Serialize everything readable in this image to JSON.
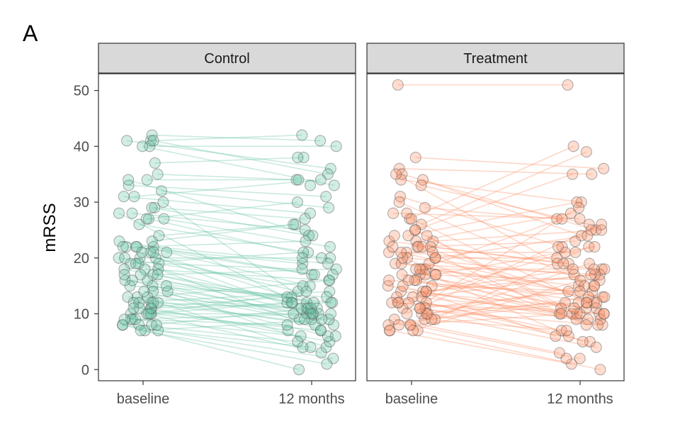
{
  "figure": {
    "tag": "A"
  },
  "colors": {
    "control": "#66c2a5",
    "treatment": "#fc8d62",
    "point_edge": "#555555",
    "strip_bg": "#d9d9d9",
    "frame": "#333333"
  },
  "chart_data": {
    "type": "line",
    "subtype": "paired-slope-scatter",
    "ylabel": "mRSS",
    "xlabel": "",
    "categories": [
      "baseline",
      "12 months"
    ],
    "ylim": [
      -2,
      53
    ],
    "yticks": [
      0,
      10,
      20,
      30,
      40,
      50
    ],
    "grid": false,
    "facets": [
      {
        "name": "Control",
        "color_key": "control",
        "pairs": [
          [
            41,
            42
          ],
          [
            40,
            40
          ],
          [
            42,
            41
          ],
          [
            41,
            36
          ],
          [
            41,
            35
          ],
          [
            37,
            38
          ],
          [
            35,
            34
          ],
          [
            34,
            34
          ],
          [
            33,
            31
          ],
          [
            32,
            29
          ],
          [
            31,
            28
          ],
          [
            29,
            27
          ],
          [
            28,
            25
          ],
          [
            27,
            22
          ],
          [
            26,
            21
          ],
          [
            24,
            26
          ],
          [
            22,
            19
          ],
          [
            22,
            17
          ],
          [
            21,
            15
          ],
          [
            20,
            14
          ],
          [
            20,
            20
          ],
          [
            19,
            18
          ],
          [
            18,
            16
          ],
          [
            17,
            12
          ],
          [
            16,
            13
          ],
          [
            15,
            10
          ],
          [
            14,
            9
          ],
          [
            13,
            11
          ],
          [
            12,
            8
          ],
          [
            11,
            7
          ],
          [
            10,
            10
          ],
          [
            10,
            12
          ],
          [
            9,
            6
          ],
          [
            8,
            5
          ],
          [
            7,
            4
          ],
          [
            7,
            9
          ],
          [
            27,
            20
          ],
          [
            23,
            17
          ],
          [
            17,
            10
          ],
          [
            12,
            11
          ],
          [
            40,
            33
          ],
          [
            34,
            24
          ],
          [
            30,
            11
          ],
          [
            28,
            10
          ],
          [
            21,
            12
          ],
          [
            18,
            7
          ],
          [
            16,
            4
          ],
          [
            14,
            9
          ],
          [
            13,
            8
          ],
          [
            11,
            5
          ],
          [
            10,
            3
          ],
          [
            8,
            2
          ],
          [
            8,
            0
          ],
          [
            7,
            1
          ],
          [
            12,
            14
          ],
          [
            15,
            13
          ],
          [
            19,
            11
          ],
          [
            20,
            15
          ],
          [
            22,
            19
          ],
          [
            17,
            18
          ],
          [
            13,
            16
          ],
          [
            11,
            13
          ],
          [
            9,
            10
          ],
          [
            10,
            7
          ],
          [
            8,
            11
          ],
          [
            11,
            12
          ],
          [
            23,
            26
          ],
          [
            27,
            30
          ],
          [
            29,
            24
          ],
          [
            31,
            34
          ],
          [
            22,
            23
          ],
          [
            19,
            21
          ],
          [
            18,
            12
          ],
          [
            15,
            9
          ],
          [
            14,
            6
          ],
          [
            12,
            4
          ],
          [
            21,
            10
          ],
          [
            16,
            12
          ],
          [
            9,
            8
          ],
          [
            10,
            14
          ]
        ],
        "baseline_only": [
          22,
          20,
          17,
          9,
          8,
          21,
          12,
          19
        ],
        "followup_only": [
          38,
          33,
          17,
          20,
          12,
          10,
          9,
          6
        ]
      },
      {
        "name": "Treatment",
        "color_key": "treatment",
        "pairs": [
          [
            51,
            51
          ],
          [
            38,
            36
          ],
          [
            36,
            35
          ],
          [
            35,
            25
          ],
          [
            34,
            30
          ],
          [
            34,
            24
          ],
          [
            33,
            26
          ],
          [
            31,
            22
          ],
          [
            29,
            27
          ],
          [
            28,
            27
          ],
          [
            27,
            40
          ],
          [
            26,
            39
          ],
          [
            25,
            35
          ],
          [
            24,
            30
          ],
          [
            23,
            28
          ],
          [
            23,
            25
          ],
          [
            22,
            23
          ],
          [
            22,
            19
          ],
          [
            21,
            21
          ],
          [
            21,
            18
          ],
          [
            20,
            20
          ],
          [
            20,
            17
          ],
          [
            19,
            17
          ],
          [
            19,
            13
          ],
          [
            18,
            18
          ],
          [
            18,
            15
          ],
          [
            17,
            16
          ],
          [
            17,
            12
          ],
          [
            16,
            11
          ],
          [
            16,
            10
          ],
          [
            15,
            14
          ],
          [
            15,
            9
          ],
          [
            14,
            11
          ],
          [
            14,
            8
          ],
          [
            13,
            10
          ],
          [
            13,
            7
          ],
          [
            12,
            9
          ],
          [
            12,
            6
          ],
          [
            11,
            8
          ],
          [
            11,
            5
          ],
          [
            10,
            12
          ],
          [
            10,
            4
          ],
          [
            9,
            7
          ],
          [
            9,
            3
          ],
          [
            8,
            10
          ],
          [
            8,
            2
          ],
          [
            7,
            1
          ],
          [
            7,
            0
          ],
          [
            35,
            19
          ],
          [
            30,
            15
          ],
          [
            27,
            12
          ],
          [
            25,
            11
          ],
          [
            24,
            10
          ],
          [
            22,
            8
          ],
          [
            20,
            10
          ],
          [
            18,
            5
          ],
          [
            17,
            9
          ],
          [
            16,
            13
          ],
          [
            14,
            17
          ],
          [
            12,
            21
          ],
          [
            11,
            26
          ],
          [
            10,
            29
          ],
          [
            9,
            22
          ],
          [
            8,
            19
          ],
          [
            7,
            16
          ],
          [
            13,
            17
          ],
          [
            21,
            14
          ],
          [
            23,
            19
          ],
          [
            19,
            10
          ],
          [
            15,
            6
          ],
          [
            12,
            10
          ],
          [
            10,
            15
          ],
          [
            17,
            22
          ],
          [
            22,
            12
          ],
          [
            20,
            24
          ],
          [
            18,
            27
          ],
          [
            14,
            18
          ],
          [
            11,
            14
          ],
          [
            9,
            12
          ],
          [
            8,
            13
          ]
        ],
        "baseline_only": [
          22,
          24,
          17,
          28,
          12,
          7,
          21,
          16
        ],
        "followup_only": [
          12,
          10,
          15,
          18,
          11,
          2,
          25,
          22
        ]
      }
    ]
  }
}
